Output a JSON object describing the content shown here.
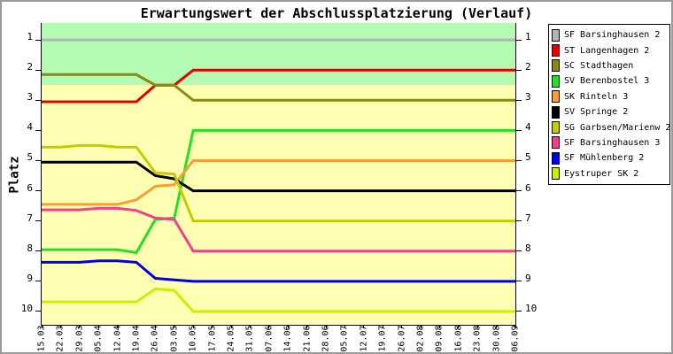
{
  "title": "Erwartungswert der Abschlussplatzierung (Verlauf)",
  "frame": {
    "background": "#ffffff",
    "border_color": "#9a9a9a"
  },
  "chart_data": {
    "type": "line",
    "title": "Erwartungswert der Abschlussplatzierung (Verlauf)",
    "xlabel": "",
    "ylabel": "Platz",
    "y_axis_inverted": true,
    "ylim": [
      0.44,
      10.44
    ],
    "y_ticks": [
      1,
      2,
      3,
      4,
      5,
      6,
      7,
      8,
      9,
      10
    ],
    "grid": false,
    "legend_position": "right",
    "x_tick_labels": [
      "15.03",
      "22.03",
      "29.03",
      "05.04",
      "12.04",
      "19.04",
      "26.04",
      "03.05",
      "10.05",
      "17.05",
      "24.05",
      "31.05",
      "07.06",
      "14.06",
      "21.06",
      "28.06",
      "05.07",
      "12.07",
      "19.07",
      "26.07",
      "02.08",
      "09.08",
      "16.08",
      "23.08",
      "30.08",
      "06.09"
    ],
    "bands": [
      {
        "name": "upper-zone",
        "from_rank": 0.44,
        "to_rank": 2.5,
        "color": "#B4FBB4"
      },
      {
        "name": "lower-zone",
        "from_rank": 2.5,
        "to_rank": 10.44,
        "color": "#FFFFB3"
      }
    ],
    "series": [
      {
        "name": "SF Barsinghausen 2",
        "color": "#B0B5B5",
        "values": [
          1,
          1,
          1,
          1,
          1,
          1,
          1,
          1,
          1,
          1,
          1,
          1,
          1,
          1,
          1,
          1,
          1,
          1,
          1,
          1,
          1,
          1,
          1,
          1,
          1,
          1
        ]
      },
      {
        "name": "ST Langenhagen 2",
        "color": "#E60000",
        "values": [
          3.05,
          3.05,
          3.05,
          3.05,
          3.05,
          3.05,
          2.5,
          2.5,
          2,
          2,
          2,
          2,
          2,
          2,
          2,
          2,
          2,
          2,
          2,
          2,
          2,
          2,
          2,
          2,
          2,
          2
        ]
      },
      {
        "name": "SC Stadthagen",
        "color": "#8A8A10",
        "values": [
          2.15,
          2.15,
          2.15,
          2.15,
          2.15,
          2.15,
          2.5,
          2.5,
          3,
          3,
          3,
          3,
          3,
          3,
          3,
          3,
          3,
          3,
          3,
          3,
          3,
          3,
          3,
          3,
          3,
          3
        ]
      },
      {
        "name": "SV Berenbostel 3",
        "color": "#22E022",
        "values": [
          7.95,
          7.95,
          7.95,
          7.95,
          7.95,
          8.05,
          6.95,
          6.9,
          4,
          4,
          4,
          4,
          4,
          4,
          4,
          4,
          4,
          4,
          4,
          4,
          4,
          4,
          4,
          4,
          4,
          4
        ]
      },
      {
        "name": "SK Rinteln 3",
        "color": "#F5A030",
        "values": [
          6.45,
          6.45,
          6.45,
          6.45,
          6.45,
          6.3,
          5.85,
          5.8,
          5,
          5,
          5,
          5,
          5,
          5,
          5,
          5,
          5,
          5,
          5,
          5,
          5,
          5,
          5,
          5,
          5,
          5
        ]
      },
      {
        "name": "SV Springe 2",
        "color": "#000000",
        "values": [
          5.05,
          5.05,
          5.05,
          5.05,
          5.05,
          5.05,
          5.5,
          5.6,
          6,
          6,
          6,
          6,
          6,
          6,
          6,
          6,
          6,
          6,
          6,
          6,
          6,
          6,
          6,
          6,
          6,
          6
        ]
      },
      {
        "name": "SG Garbsen/Marienw 2",
        "color": "#C9C900",
        "values": [
          4.55,
          4.55,
          4.5,
          4.5,
          4.55,
          4.55,
          5.4,
          5.45,
          7,
          7,
          7,
          7,
          7,
          7,
          7,
          7,
          7,
          7,
          7,
          7,
          7,
          7,
          7,
          7,
          7,
          7
        ]
      },
      {
        "name": "SF Barsinghausen 3",
        "color": "#F0408C",
        "values": [
          6.63,
          6.63,
          6.63,
          6.58,
          6.58,
          6.65,
          6.9,
          6.95,
          8,
          8,
          8,
          8,
          8,
          8,
          8,
          8,
          8,
          8,
          8,
          8,
          8,
          8,
          8,
          8,
          8,
          8
        ]
      },
      {
        "name": "SF Mühlenberg 2",
        "color": "#0000E0",
        "values": [
          8.37,
          8.37,
          8.37,
          8.32,
          8.32,
          8.37,
          8.9,
          8.95,
          9,
          9,
          9,
          9,
          9,
          9,
          9,
          9,
          9,
          9,
          9,
          9,
          9,
          9,
          9,
          9,
          9,
          9
        ]
      },
      {
        "name": "Eystruper SK 2",
        "color": "#C9F000",
        "values": [
          9.68,
          9.68,
          9.68,
          9.68,
          9.68,
          9.68,
          9.25,
          9.3,
          10,
          10,
          10,
          10,
          10,
          10,
          10,
          10,
          10,
          10,
          10,
          10,
          10,
          10,
          10,
          10,
          10,
          10
        ]
      }
    ]
  }
}
